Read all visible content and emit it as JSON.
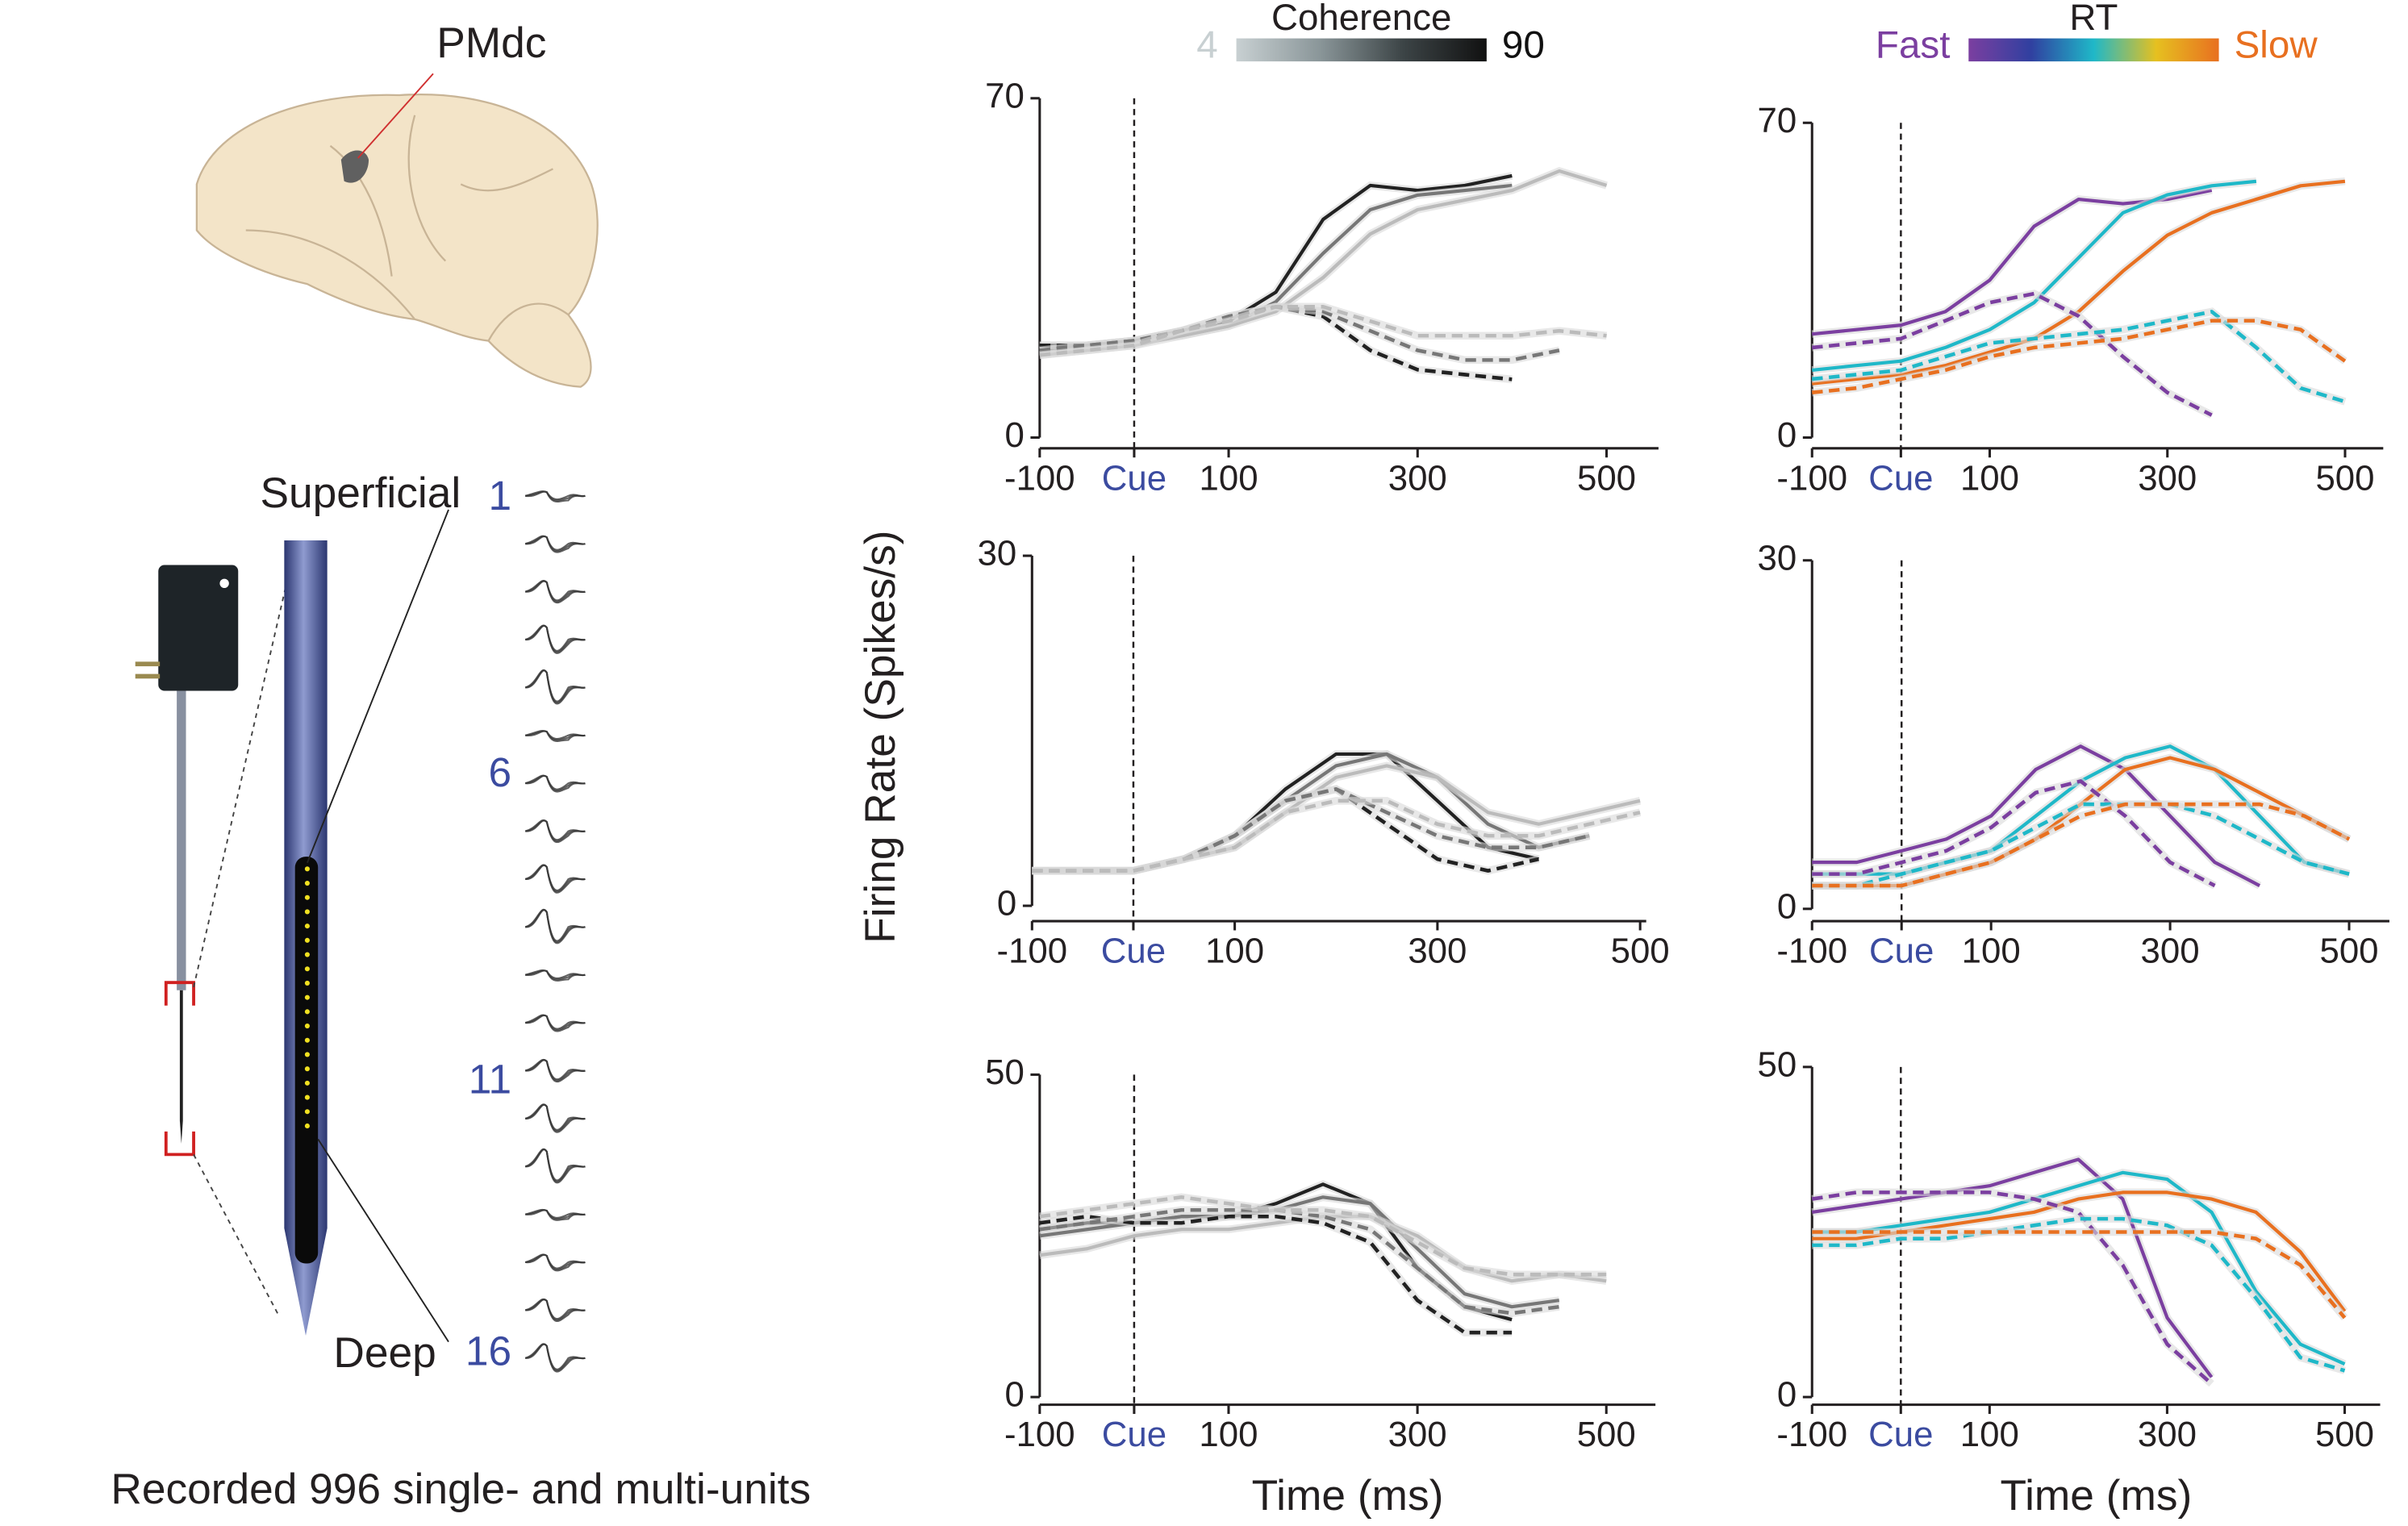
{
  "shared_ylabel": "Firing Rate (Spikes/s)",
  "left_panel": {
    "area_label": "PMdc",
    "superficial": "Superficial",
    "deep": "Deep",
    "channels": [
      1,
      6,
      11,
      16
    ],
    "caption": "Recorded 996 single- and multi-units"
  },
  "chart_data": [
    {
      "type": "line",
      "xlim": [
        -100,
        555
      ],
      "ylim": [
        0,
        70
      ],
      "yticks": [
        0,
        70
      ],
      "xticks": [
        -100,
        {
          "value": 0,
          "label": "Cue"
        },
        100,
        300,
        500
      ],
      "vline": 0,
      "colorbar": {
        "title": "Coherence",
        "low": 4,
        "high": 90,
        "colors": [
          "#c8d0d2",
          "#8a9699",
          "#3c4446",
          "#111111"
        ]
      },
      "x": [
        -100,
        -50,
        0,
        50,
        100,
        150,
        200,
        250,
        300,
        350,
        400,
        450,
        500
      ],
      "series": [
        {
          "color": "#222222",
          "style": "solid",
          "values": [
            19,
            19,
            20,
            22,
            24,
            30,
            45,
            52,
            51,
            52,
            54,
            null,
            null
          ]
        },
        {
          "color": "#777777",
          "style": "solid",
          "values": [
            18,
            19,
            20,
            21,
            23,
            28,
            38,
            47,
            50,
            51,
            52,
            null,
            null
          ]
        },
        {
          "color": "#bbbbbb",
          "style": "solid",
          "values": [
            17,
            18,
            19,
            21,
            23,
            26,
            33,
            42,
            47,
            49,
            51,
            55,
            52
          ]
        },
        {
          "color": "#222222",
          "style": "dashed",
          "values": [
            19,
            19,
            20,
            22,
            25,
            27,
            25,
            18,
            14,
            13,
            12,
            null,
            null
          ]
        },
        {
          "color": "#777777",
          "style": "dashed",
          "values": [
            18,
            19,
            20,
            22,
            25,
            27,
            26,
            22,
            18,
            16,
            16,
            18,
            null
          ]
        },
        {
          "color": "#bbbbbb",
          "style": "dashed",
          "values": [
            17,
            18,
            19,
            22,
            24,
            27,
            27,
            24,
            21,
            21,
            21,
            22,
            21
          ]
        }
      ]
    },
    {
      "type": "line",
      "xlim": [
        -100,
        506
      ],
      "ylim": [
        0,
        30
      ],
      "yticks": [
        0,
        30
      ],
      "xticks": [
        -100,
        {
          "value": 0,
          "label": "Cue"
        },
        100,
        300,
        500
      ],
      "vline": 0,
      "x": [
        -100,
        -50,
        0,
        50,
        100,
        150,
        200,
        250,
        300,
        350,
        400,
        450,
        500
      ],
      "series": [
        {
          "color": "#222222",
          "style": "solid",
          "values": [
            3,
            3,
            3,
            4,
            6,
            10,
            13,
            13,
            9,
            5,
            4,
            null,
            null
          ]
        },
        {
          "color": "#777777",
          "style": "solid",
          "values": [
            3,
            3,
            3,
            4,
            6,
            9,
            12,
            13,
            11,
            7,
            5,
            6,
            null
          ]
        },
        {
          "color": "#bbbbbb",
          "style": "solid",
          "values": [
            3,
            3,
            3,
            4,
            5,
            8,
            11,
            12,
            11,
            8,
            7,
            8,
            9
          ]
        },
        {
          "color": "#222222",
          "style": "dashed",
          "values": [
            3,
            3,
            3,
            4,
            6,
            9,
            10,
            7,
            4,
            3,
            4,
            null,
            null
          ]
        },
        {
          "color": "#777777",
          "style": "dashed",
          "values": [
            3,
            3,
            3,
            4,
            6,
            9,
            10,
            8,
            6,
            5,
            5,
            6,
            null
          ]
        },
        {
          "color": "#bbbbbb",
          "style": "dashed",
          "values": [
            3,
            3,
            3,
            4,
            5,
            8,
            9,
            9,
            7,
            6,
            6,
            7,
            8
          ]
        }
      ]
    },
    {
      "type": "line",
      "xlim": [
        -100,
        552
      ],
      "ylim": [
        0,
        50
      ],
      "yticks": [
        0,
        50
      ],
      "xticks": [
        -100,
        {
          "value": 0,
          "label": "Cue"
        },
        100,
        300,
        500
      ],
      "vline": 0,
      "xlabel": "Time (ms)",
      "x": [
        -100,
        -50,
        0,
        50,
        100,
        150,
        200,
        250,
        300,
        350,
        400,
        450,
        500
      ],
      "series": [
        {
          "color": "#222222",
          "style": "solid",
          "values": [
            26,
            27,
            27,
            28,
            28,
            30,
            33,
            30,
            20,
            14,
            12,
            null,
            null
          ]
        },
        {
          "color": "#777777",
          "style": "solid",
          "values": [
            25,
            26,
            27,
            28,
            28,
            29,
            31,
            30,
            23,
            16,
            14,
            15,
            null
          ]
        },
        {
          "color": "#bbbbbb",
          "style": "solid",
          "values": [
            22,
            23,
            25,
            26,
            26,
            27,
            28,
            28,
            25,
            20,
            18,
            19,
            18
          ]
        },
        {
          "color": "#222222",
          "style": "dashed",
          "values": [
            27,
            28,
            27,
            27,
            28,
            28,
            27,
            24,
            15,
            10,
            10,
            null,
            null
          ]
        },
        {
          "color": "#777777",
          "style": "dashed",
          "values": [
            26,
            27,
            28,
            29,
            29,
            29,
            28,
            26,
            20,
            14,
            13,
            14,
            null
          ]
        },
        {
          "color": "#bbbbbb",
          "style": "dashed",
          "values": [
            28,
            29,
            30,
            31,
            30,
            29,
            29,
            28,
            24,
            20,
            19,
            19,
            19
          ]
        }
      ]
    },
    {
      "type": "line",
      "xlim": [
        -100,
        543
      ],
      "ylim": [
        0,
        70
      ],
      "yticks": [
        0,
        70
      ],
      "xticks": [
        -100,
        {
          "value": 0,
          "label": "Cue"
        },
        100,
        300,
        500
      ],
      "vline": 0,
      "colorbar": {
        "title": "RT",
        "low": "Fast",
        "high": "Slow",
        "colors": [
          "#7b3fa0",
          "#3040a0",
          "#1fb8c8",
          "#e6c020",
          "#e87020"
        ]
      },
      "x": [
        -100,
        -50,
        0,
        50,
        100,
        150,
        200,
        250,
        300,
        350,
        400,
        450,
        500
      ],
      "series": [
        {
          "color": "#7b3fa0",
          "style": "solid",
          "values": [
            23,
            24,
            25,
            28,
            35,
            47,
            53,
            52,
            53,
            55,
            null,
            null,
            null
          ]
        },
        {
          "color": "#1fb8c8",
          "style": "solid",
          "values": [
            15,
            16,
            17,
            20,
            24,
            30,
            40,
            50,
            54,
            56,
            57,
            null,
            null
          ]
        },
        {
          "color": "#e87020",
          "style": "solid",
          "values": [
            12,
            13,
            14,
            16,
            19,
            22,
            28,
            37,
            45,
            50,
            53,
            56,
            57
          ]
        },
        {
          "color": "#7b3fa0",
          "style": "dashed",
          "values": [
            20,
            21,
            22,
            26,
            30,
            32,
            27,
            18,
            10,
            5,
            null,
            null,
            null
          ]
        },
        {
          "color": "#1fb8c8",
          "style": "dashed",
          "values": [
            13,
            14,
            15,
            18,
            21,
            22,
            23,
            24,
            26,
            28,
            20,
            11,
            8
          ]
        },
        {
          "color": "#e87020",
          "style": "dashed",
          "values": [
            10,
            11,
            13,
            15,
            18,
            20,
            21,
            22,
            24,
            26,
            26,
            24,
            17
          ]
        }
      ]
    },
    {
      "type": "line",
      "xlim": [
        -100,
        545
      ],
      "ylim": [
        0,
        30
      ],
      "yticks": [
        0,
        30
      ],
      "xticks": [
        -100,
        {
          "value": 0,
          "label": "Cue"
        },
        100,
        300,
        500
      ],
      "vline": 0,
      "x": [
        -100,
        -50,
        0,
        50,
        100,
        150,
        200,
        250,
        300,
        350,
        400,
        450,
        500
      ],
      "series": [
        {
          "color": "#7b3fa0",
          "style": "solid",
          "values": [
            4,
            4,
            5,
            6,
            8,
            12,
            14,
            12,
            8,
            4,
            2,
            null,
            null
          ]
        },
        {
          "color": "#1fb8c8",
          "style": "solid",
          "values": [
            3,
            3,
            3,
            4,
            5,
            8,
            11,
            13,
            14,
            12,
            8,
            4,
            3
          ]
        },
        {
          "color": "#e87020",
          "style": "solid",
          "values": [
            2,
            2,
            2,
            3,
            4,
            6,
            9,
            12,
            13,
            12,
            10,
            8,
            6
          ]
        },
        {
          "color": "#7b3fa0",
          "style": "dashed",
          "values": [
            3,
            3,
            4,
            5,
            7,
            10,
            11,
            8,
            4,
            2,
            null,
            null,
            null
          ]
        },
        {
          "color": "#1fb8c8",
          "style": "dashed",
          "values": [
            2,
            2,
            3,
            4,
            5,
            7,
            9,
            9,
            9,
            8,
            6,
            4,
            3
          ]
        },
        {
          "color": "#e87020",
          "style": "dashed",
          "values": [
            2,
            2,
            2,
            3,
            4,
            6,
            8,
            9,
            9,
            9,
            9,
            8,
            6
          ]
        }
      ]
    },
    {
      "type": "line",
      "xlim": [
        -100,
        540
      ],
      "ylim": [
        0,
        50
      ],
      "yticks": [
        0,
        50
      ],
      "xticks": [
        -100,
        {
          "value": 0,
          "label": "Cue"
        },
        100,
        300,
        500
      ],
      "vline": 0,
      "xlabel": "Time (ms)",
      "x": [
        -100,
        -50,
        0,
        50,
        100,
        150,
        200,
        250,
        300,
        350,
        400,
        450,
        500
      ],
      "series": [
        {
          "color": "#7b3fa0",
          "style": "solid",
          "values": [
            28,
            29,
            30,
            31,
            32,
            34,
            36,
            30,
            12,
            3,
            null,
            null,
            null
          ]
        },
        {
          "color": "#1fb8c8",
          "style": "solid",
          "values": [
            25,
            25,
            26,
            27,
            28,
            30,
            32,
            34,
            33,
            28,
            16,
            8,
            5
          ]
        },
        {
          "color": "#e87020",
          "style": "solid",
          "values": [
            24,
            24,
            25,
            26,
            27,
            28,
            30,
            31,
            31,
            30,
            28,
            22,
            13
          ]
        },
        {
          "color": "#7b3fa0",
          "style": "dashed",
          "values": [
            30,
            31,
            31,
            31,
            31,
            30,
            28,
            20,
            8,
            2,
            null,
            null,
            null
          ]
        },
        {
          "color": "#1fb8c8",
          "style": "dashed",
          "values": [
            23,
            23,
            24,
            24,
            25,
            26,
            27,
            27,
            26,
            23,
            15,
            6,
            4
          ]
        },
        {
          "color": "#e87020",
          "style": "dashed",
          "values": [
            25,
            25,
            25,
            25,
            25,
            25,
            25,
            25,
            25,
            25,
            24,
            20,
            12
          ]
        }
      ]
    }
  ]
}
